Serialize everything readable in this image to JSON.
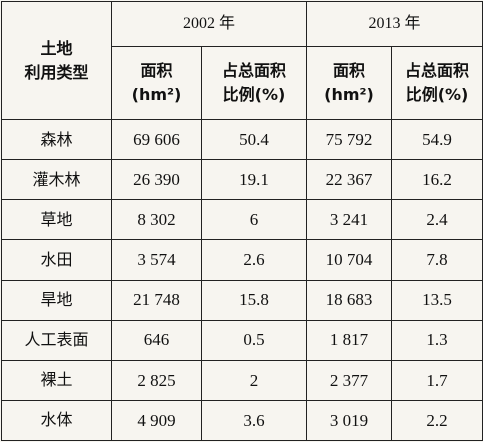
{
  "header": {
    "corner": [
      "土地",
      "利用类型"
    ],
    "years": [
      "2002 年",
      "2013 年"
    ],
    "columns": [
      [
        "面积",
        "(hm²)"
      ],
      [
        "占总面积",
        "比例(%)"
      ],
      [
        "面积",
        "(hm²)"
      ],
      [
        "占总面积",
        "比例(%)"
      ]
    ]
  },
  "table": {
    "rows": [
      [
        "森林",
        "69 606",
        "50.4",
        "75 792",
        "54.9"
      ],
      [
        "灌木林",
        "26 390",
        "19.1",
        "22 367",
        "16.2"
      ],
      [
        "草地",
        "8 302",
        "6",
        "3 241",
        "2.4"
      ],
      [
        "水田",
        "3 574",
        "2.6",
        "10 704",
        "7.8"
      ],
      [
        "旱地",
        "21 748",
        "15.8",
        "18 683",
        "13.5"
      ],
      [
        "人工表面",
        "646",
        "0.5",
        "1 817",
        "1.3"
      ],
      [
        "裸土",
        "2 825",
        "2",
        "2 377",
        "1.7"
      ],
      [
        "水体",
        "4 909",
        "3.6",
        "3 019",
        "2.2"
      ]
    ]
  }
}
